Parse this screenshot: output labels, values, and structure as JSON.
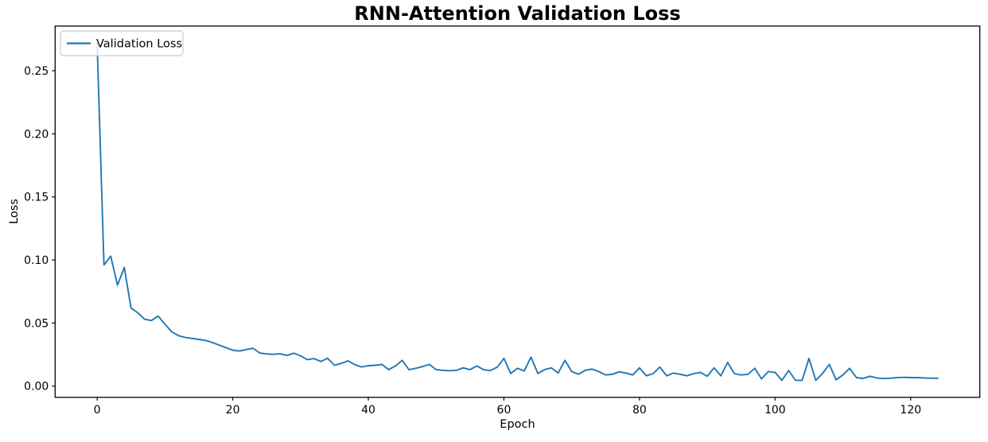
{
  "chart_data": {
    "type": "line",
    "title": "RNN-Attention Validation Loss",
    "xlabel": "Epoch",
    "ylabel": "Loss",
    "legend": {
      "position": "upper left",
      "entries": [
        "Validation Loss"
      ]
    },
    "line_color": "#1f77b4",
    "background_color": "#ffffff",
    "grid": false,
    "xlim": [
      -6.2,
      130.2
    ],
    "ylim": [
      -0.0089,
      0.2854
    ],
    "xticks": [
      0,
      20,
      40,
      60,
      80,
      100,
      120
    ],
    "yticks": [
      0.0,
      0.05,
      0.1,
      0.15,
      0.2,
      0.25
    ],
    "x_is_epoch_index_starting_at": 0,
    "series": [
      {
        "name": "Validation Loss",
        "values": [
          0.272,
          0.096,
          0.103,
          0.08,
          0.094,
          0.062,
          0.058,
          0.053,
          0.052,
          0.0555,
          0.049,
          0.043,
          0.04,
          0.0385,
          0.0378,
          0.037,
          0.0362,
          0.0345,
          0.0325,
          0.0305,
          0.0285,
          0.0278,
          0.029,
          0.03,
          0.0262,
          0.0255,
          0.0252,
          0.0256,
          0.0243,
          0.0261,
          0.024,
          0.021,
          0.0218,
          0.0195,
          0.0221,
          0.0165,
          0.018,
          0.02,
          0.017,
          0.0152,
          0.0162,
          0.0165,
          0.0172,
          0.013,
          0.016,
          0.0204,
          0.013,
          0.0141,
          0.0155,
          0.0172,
          0.013,
          0.0125,
          0.0122,
          0.0125,
          0.0145,
          0.013,
          0.016,
          0.013,
          0.0123,
          0.015,
          0.022,
          0.01,
          0.0141,
          0.012,
          0.023,
          0.01,
          0.013,
          0.0145,
          0.0103,
          0.0204,
          0.0115,
          0.0094,
          0.0125,
          0.0135,
          0.0115,
          0.0088,
          0.0094,
          0.0113,
          0.0103,
          0.0088,
          0.0145,
          0.0082,
          0.0099,
          0.0151,
          0.0082,
          0.0103,
          0.0094,
          0.0082,
          0.0099,
          0.0109,
          0.0078,
          0.0145,
          0.0082,
          0.0187,
          0.0099,
          0.0088,
          0.0094,
          0.0141,
          0.0057,
          0.0115,
          0.0109,
          0.0046,
          0.0124,
          0.0046,
          0.0046,
          0.022,
          0.0046,
          0.01,
          0.0172,
          0.005,
          0.0088,
          0.0141,
          0.0067,
          0.0061,
          0.0078,
          0.0065,
          0.006,
          0.0062,
          0.0068,
          0.0069,
          0.0068,
          0.0067,
          0.0065,
          0.0063,
          0.0062
        ]
      }
    ]
  }
}
